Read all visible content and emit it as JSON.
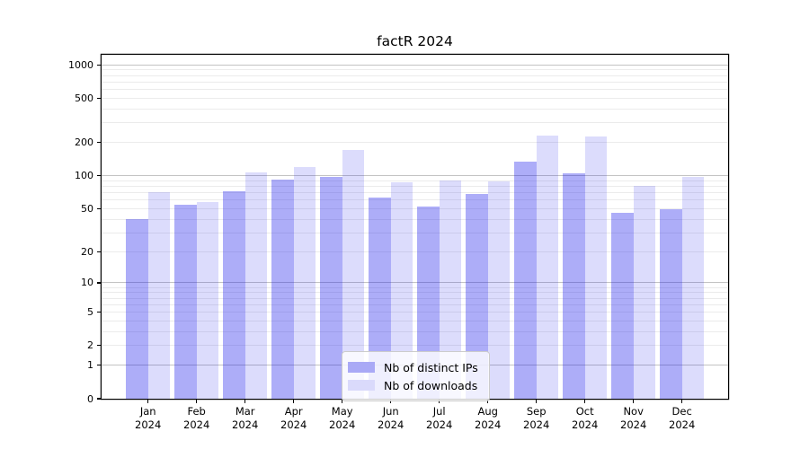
{
  "chart_data": {
    "type": "bar",
    "title": "factR 2024",
    "categories": [
      "Jan",
      "Feb",
      "Mar",
      "Apr",
      "May",
      "Jun",
      "Jul",
      "Aug",
      "Sep",
      "Oct",
      "Nov",
      "Dec"
    ],
    "category_year": "2024",
    "series": [
      {
        "name": "Nb of distinct IPs",
        "color": "rgba(20,20,235,0.35)",
        "legend_color": "#a9a9f6",
        "values": [
          40,
          54,
          72,
          92,
          98,
          63,
          52,
          68,
          135,
          104,
          46,
          49
        ]
      },
      {
        "name": "Nb of downloads",
        "color": "rgba(20,20,235,0.15)",
        "legend_color": "#dadafb",
        "values": [
          71,
          57,
          106,
          120,
          170,
          87,
          90,
          89,
          230,
          224,
          80,
          97
        ]
      }
    ],
    "xlabel": "",
    "ylabel": "",
    "yscale": "log1p",
    "ylim": [
      0,
      1230
    ],
    "ytick_values": [
      0,
      1,
      2,
      5,
      10,
      20,
      50,
      100,
      200,
      500,
      1000
    ],
    "ytick_labels": [
      "0",
      "1",
      "2",
      "5",
      "10",
      "20",
      "50",
      "100",
      "200",
      "500",
      "1000"
    ],
    "major_grid_values": [
      1,
      10,
      100,
      1000
    ],
    "minor_grid_values": [
      2,
      3,
      4,
      5,
      6,
      7,
      8,
      9,
      20,
      30,
      40,
      50,
      60,
      70,
      80,
      90,
      200,
      300,
      400,
      500,
      600,
      700,
      800,
      900
    ],
    "grid": true,
    "legend_position": "bottom-center"
  },
  "colors": {
    "bar_distinct_ips": "#a9a9f6",
    "bar_downloads": "#dadafb",
    "major_grid": "#c3c3c3",
    "minor_grid": "#ebebeb",
    "spine": "#000000",
    "text": "#000000",
    "legend_bg": "rgba(255,255,255,0.8)",
    "legend_border": "#cccccc"
  }
}
